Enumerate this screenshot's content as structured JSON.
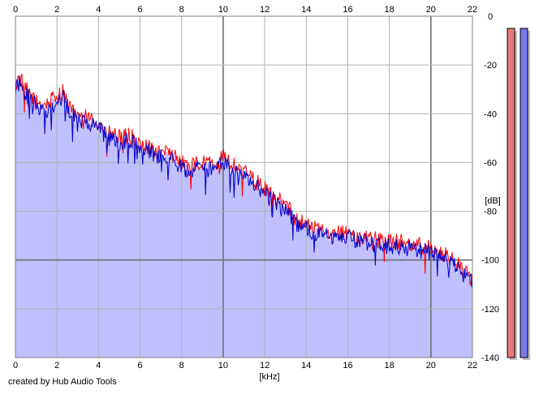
{
  "chart_data": {
    "type": "area",
    "title": "",
    "xlabel": "[kHz]",
    "ylabel": "[dB]",
    "xlim": [
      0,
      22
    ],
    "ylim": [
      -140,
      0
    ],
    "x_ticks": [
      "0",
      "2",
      "4",
      "6",
      "8",
      "10",
      "12",
      "14",
      "16",
      "18",
      "20",
      "22"
    ],
    "y_ticks": [
      "0",
      "-20",
      "-40",
      "-60",
      "-80",
      "-100",
      "-120",
      "-140"
    ],
    "grid": true,
    "series": [
      {
        "name": "",
        "role": "left channel spectrum",
        "color": "#ff0000",
        "x": [
          0,
          0.2,
          0.5,
          1,
          1.5,
          2,
          2.3,
          2.6,
          3,
          3.5,
          4,
          4.5,
          5,
          5.5,
          6,
          6.5,
          7,
          7.5,
          8,
          8.5,
          9,
          9.5,
          10,
          10.5,
          11,
          11.5,
          12,
          12.5,
          13,
          13.5,
          14,
          14.5,
          15,
          15.5,
          16,
          16.5,
          17,
          17.5,
          18,
          18.5,
          19,
          19.5,
          20,
          20.5,
          21,
          21.5,
          22
        ],
        "values": [
          -28,
          -25,
          -30,
          -35,
          -36,
          -33,
          -31,
          -38,
          -40,
          -42,
          -44,
          -48,
          -50,
          -49,
          -52,
          -54,
          -56,
          -57,
          -60,
          -61,
          -60,
          -61,
          -58,
          -61,
          -63,
          -67,
          -71,
          -74,
          -77,
          -83,
          -85,
          -87,
          -88,
          -89,
          -89,
          -90,
          -91,
          -92,
          -92,
          -93,
          -93,
          -94,
          -95,
          -97,
          -99,
          -103,
          -108
        ]
      },
      {
        "name": "",
        "role": "right channel spectrum",
        "color": "#0000cc",
        "x": [
          0,
          0.2,
          0.5,
          1,
          1.5,
          2,
          2.3,
          2.6,
          3,
          3.5,
          4,
          4.5,
          5,
          5.5,
          6,
          6.5,
          7,
          7.5,
          8,
          8.5,
          9,
          9.5,
          10,
          10.5,
          11,
          11.5,
          12,
          12.5,
          13,
          13.5,
          14,
          14.5,
          15,
          15.5,
          16,
          16.5,
          17,
          17.5,
          18,
          18.5,
          19,
          19.5,
          20,
          20.5,
          21,
          21.5,
          22
        ],
        "values": [
          -30,
          -27,
          -32,
          -37,
          -38,
          -36,
          -33,
          -40,
          -42,
          -44,
          -46,
          -50,
          -52,
          -51,
          -54,
          -56,
          -58,
          -58,
          -62,
          -63,
          -62,
          -63,
          -60,
          -63,
          -65,
          -69,
          -73,
          -76,
          -79,
          -85,
          -87,
          -89,
          -90,
          -91,
          -91,
          -92,
          -93,
          -94,
          -94,
          -95,
          -95,
          -96,
          -97,
          -99,
          -101,
          -105,
          -110
        ]
      }
    ],
    "fill_color": "#c0c0ff",
    "level_meters": [
      {
        "channel": "left",
        "color": "#e87878",
        "level_db": -5
      },
      {
        "channel": "right",
        "color": "#7878e8",
        "level_db": -5
      }
    ]
  },
  "footer": {
    "credit": "created by Hub Audio Tools"
  }
}
